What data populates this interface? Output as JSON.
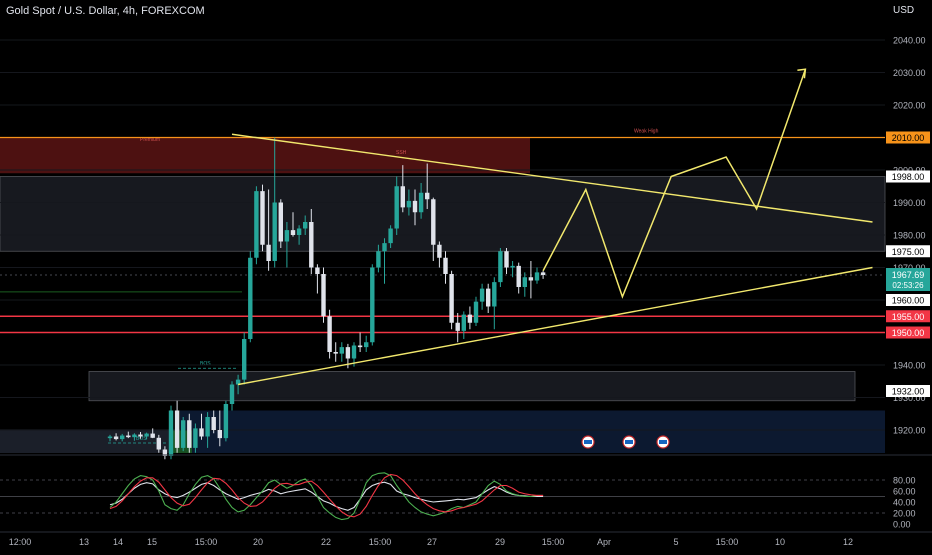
{
  "header": {
    "title": "Gold Spot / U.S. Dollar, 4h, FOREXCOM",
    "currency": "USD"
  },
  "colors": {
    "bull": "#26a69a",
    "bear": "#e0e3eb",
    "projection": "#f2e86d",
    "support_red": "#f23645",
    "premium_zone": "#5a1414",
    "discount_zone": "#0d1a33",
    "rsi_fast": "#e0e3eb",
    "stoch_k": "#4caf50",
    "stoch_d": "#f23645"
  },
  "chart_data": {
    "type": "candlestick",
    "title": "Gold Spot / U.S. Dollar, 4h, FOREXCOM",
    "ylabel": "USD",
    "ylim": [
      1910,
      2045
    ],
    "y_ticks": [
      1920,
      1930,
      1940,
      1950,
      1960,
      1970,
      1980,
      1990,
      2000,
      2010,
      2020,
      2030,
      2040
    ],
    "y_tick_labels": [
      "1920.00",
      "1930.00",
      "1940.00",
      "1950.00",
      "1960.00",
      "1970.00",
      "1980.00",
      "1990.00",
      "2000.00",
      "2010.00",
      "2020.00",
      "2030.00",
      "2040.00"
    ],
    "x_tick_labels": [
      "12:00",
      "13",
      "14",
      "15",
      "15:00",
      "20",
      "22",
      "15:00",
      "27",
      "29",
      "15:00",
      "Apr",
      "5",
      "15:00",
      "10",
      "12"
    ],
    "level_labels": {
      "l2010": "2010.00",
      "l1998": "1998.00",
      "l1975": "1975.00",
      "last": "1967.69",
      "countdown": "02:53:26",
      "l1960": "1960.00",
      "l1955": "1955.00",
      "l1950": "1950.00",
      "l1932": "1932.00"
    },
    "annotations": {
      "premium": "Premium",
      "ssh": "SSH",
      "weak_high": "Weak High",
      "bos1": "BOS",
      "bos2": "BOS"
    },
    "zones": [
      {
        "name": "premium",
        "from": 1999,
        "to": 2010
      },
      {
        "name": "upper-range",
        "from": 1975,
        "to": 1998
      },
      {
        "name": "demand",
        "from": 1929,
        "to": 1938
      },
      {
        "name": "discount",
        "from": 1910,
        "to": 1926
      }
    ],
    "candles": [
      {
        "o": 1917.5,
        "h": 1918.5,
        "l": 1916.5,
        "c": 1918.0
      },
      {
        "o": 1918.0,
        "h": 1919.0,
        "l": 1916.8,
        "c": 1917.2
      },
      {
        "o": 1917.2,
        "h": 1918.8,
        "l": 1916.5,
        "c": 1918.3
      },
      {
        "o": 1918.3,
        "h": 1919.5,
        "l": 1917.5,
        "c": 1917.8
      },
      {
        "o": 1917.8,
        "h": 1919.0,
        "l": 1916.7,
        "c": 1918.6
      },
      {
        "o": 1918.6,
        "h": 1919.4,
        "l": 1917.3,
        "c": 1918.0
      },
      {
        "o": 1918.0,
        "h": 1919.2,
        "l": 1917.1,
        "c": 1918.9
      },
      {
        "o": 1918.9,
        "h": 1920.5,
        "l": 1917.5,
        "c": 1917.6
      },
      {
        "o": 1917.6,
        "h": 1918.5,
        "l": 1913.0,
        "c": 1914.0
      },
      {
        "o": 1914.0,
        "h": 1915.0,
        "l": 1911.0,
        "c": 1912.0
      },
      {
        "o": 1912.0,
        "h": 1927.5,
        "l": 1911.0,
        "c": 1926.0
      },
      {
        "o": 1926.0,
        "h": 1929.0,
        "l": 1913.0,
        "c": 1914.5
      },
      {
        "o": 1914.5,
        "h": 1924.0,
        "l": 1913.5,
        "c": 1923.0
      },
      {
        "o": 1923.0,
        "h": 1925.0,
        "l": 1913.0,
        "c": 1914.5
      },
      {
        "o": 1914.5,
        "h": 1922.0,
        "l": 1913.0,
        "c": 1920.5
      },
      {
        "o": 1920.5,
        "h": 1925.0,
        "l": 1917.0,
        "c": 1918.0
      },
      {
        "o": 1918.0,
        "h": 1925.5,
        "l": 1914.5,
        "c": 1924.0
      },
      {
        "o": 1924.0,
        "h": 1926.0,
        "l": 1919.0,
        "c": 1920.0
      },
      {
        "o": 1920.0,
        "h": 1926.0,
        "l": 1915.0,
        "c": 1917.5
      },
      {
        "o": 1917.5,
        "h": 1929.0,
        "l": 1916.5,
        "c": 1928.0
      },
      {
        "o": 1928.0,
        "h": 1935.0,
        "l": 1926.0,
        "c": 1934.0
      },
      {
        "o": 1934.0,
        "h": 1937.0,
        "l": 1931.0,
        "c": 1935.5
      },
      {
        "o": 1935.5,
        "h": 1950.0,
        "l": 1934.0,
        "c": 1948.0
      },
      {
        "o": 1948.0,
        "h": 1975.0,
        "l": 1947.0,
        "c": 1973.0
      },
      {
        "o": 1973.0,
        "h": 1995.0,
        "l": 1971.0,
        "c": 1993.5
      },
      {
        "o": 1993.5,
        "h": 1995.5,
        "l": 1975.0,
        "c": 1977.0
      },
      {
        "o": 1977.0,
        "h": 1994.0,
        "l": 1969.0,
        "c": 1972.0
      },
      {
        "o": 1972.0,
        "h": 2010.0,
        "l": 1970.0,
        "c": 1990.0
      },
      {
        "o": 1990.0,
        "h": 1991.0,
        "l": 1976.0,
        "c": 1978.0
      },
      {
        "o": 1978.0,
        "h": 1984.0,
        "l": 1970.0,
        "c": 1981.5
      },
      {
        "o": 1981.5,
        "h": 1987.0,
        "l": 1979.5,
        "c": 1980.0
      },
      {
        "o": 1980.0,
        "h": 1983.0,
        "l": 1977.0,
        "c": 1982.0
      },
      {
        "o": 1982.0,
        "h": 1986.0,
        "l": 1980.0,
        "c": 1984.0
      },
      {
        "o": 1984.0,
        "h": 1988.0,
        "l": 1968.0,
        "c": 1970.0
      },
      {
        "o": 1970.0,
        "h": 1971.0,
        "l": 1962.0,
        "c": 1968.0
      },
      {
        "o": 1968.0,
        "h": 1970.0,
        "l": 1953.0,
        "c": 1955.0
      },
      {
        "o": 1955.0,
        "h": 1957.0,
        "l": 1942.0,
        "c": 1944.0
      },
      {
        "o": 1944.0,
        "h": 1947.0,
        "l": 1941.0,
        "c": 1943.5
      },
      {
        "o": 1943.5,
        "h": 1947.0,
        "l": 1941.0,
        "c": 1945.5
      },
      {
        "o": 1945.5,
        "h": 1946.5,
        "l": 1939.0,
        "c": 1942.0
      },
      {
        "o": 1942.0,
        "h": 1947.0,
        "l": 1939.5,
        "c": 1946.0
      },
      {
        "o": 1946.0,
        "h": 1950.0,
        "l": 1944.0,
        "c": 1945.5
      },
      {
        "o": 1945.5,
        "h": 1949.0,
        "l": 1944.0,
        "c": 1947.0
      },
      {
        "o": 1947.0,
        "h": 1971.0,
        "l": 1946.0,
        "c": 1970.0
      },
      {
        "o": 1970.0,
        "h": 1977.0,
        "l": 1968.5,
        "c": 1975.0
      },
      {
        "o": 1975.0,
        "h": 1979.0,
        "l": 1965.0,
        "c": 1977.5
      },
      {
        "o": 1977.5,
        "h": 1983.0,
        "l": 1976.0,
        "c": 1982.0
      },
      {
        "o": 1982.0,
        "h": 1998.0,
        "l": 1980.0,
        "c": 1995.0
      },
      {
        "o": 1995.0,
        "h": 2001.5,
        "l": 1987.0,
        "c": 1988.5
      },
      {
        "o": 1988.5,
        "h": 1994.0,
        "l": 1986.0,
        "c": 1990.5
      },
      {
        "o": 1990.5,
        "h": 1994.0,
        "l": 1983.0,
        "c": 1987.0
      },
      {
        "o": 1987.0,
        "h": 1996.0,
        "l": 1985.0,
        "c": 1993.0
      },
      {
        "o": 1993.0,
        "h": 2002.0,
        "l": 1988.0,
        "c": 1991.0
      },
      {
        "o": 1991.0,
        "h": 1991.5,
        "l": 1972.0,
        "c": 1977.0
      },
      {
        "o": 1977.0,
        "h": 1978.0,
        "l": 1970.0,
        "c": 1973.0
      },
      {
        "o": 1973.0,
        "h": 1975.0,
        "l": 1965.0,
        "c": 1968.0
      },
      {
        "o": 1968.0,
        "h": 1969.0,
        "l": 1951.0,
        "c": 1953.0
      },
      {
        "o": 1953.0,
        "h": 1956.0,
        "l": 1947.0,
        "c": 1950.5
      },
      {
        "o": 1950.5,
        "h": 1956.5,
        "l": 1948.0,
        "c": 1955.5
      },
      {
        "o": 1955.5,
        "h": 1958.0,
        "l": 1951.0,
        "c": 1953.0
      },
      {
        "o": 1953.0,
        "h": 1961.0,
        "l": 1952.0,
        "c": 1959.5
      },
      {
        "o": 1959.5,
        "h": 1965.0,
        "l": 1957.0,
        "c": 1963.5
      },
      {
        "o": 1963.5,
        "h": 1965.0,
        "l": 1956.0,
        "c": 1958.0
      },
      {
        "o": 1958.0,
        "h": 1967.0,
        "l": 1951.0,
        "c": 1965.5
      },
      {
        "o": 1965.5,
        "h": 1976.0,
        "l": 1964.0,
        "c": 1975.0
      },
      {
        "o": 1975.0,
        "h": 1976.0,
        "l": 1968.0,
        "c": 1970.0
      },
      {
        "o": 1970.0,
        "h": 1972.0,
        "l": 1967.0,
        "c": 1970.5
      },
      {
        "o": 1970.5,
        "h": 1971.5,
        "l": 1962.0,
        "c": 1964.0
      },
      {
        "o": 1964.0,
        "h": 1968.5,
        "l": 1961.0,
        "c": 1967.0
      },
      {
        "o": 1967.0,
        "h": 1972.0,
        "l": 1960.5,
        "c": 1966.0
      },
      {
        "o": 1966.0,
        "h": 1970.0,
        "l": 1965.0,
        "c": 1968.5
      },
      {
        "o": 1968.5,
        "h": 1969.0,
        "l": 1966.5,
        "c": 1967.7
      }
    ],
    "projection": {
      "x_index": [
        71,
        78,
        84,
        92,
        101,
        106,
        114
      ],
      "y": [
        1969,
        1994,
        1961,
        1998,
        2004,
        1988,
        2031
      ]
    },
    "trendlines": [
      {
        "name": "upper",
        "from": {
          "i": 20,
          "y": 2011
        },
        "to": {
          "i": 125,
          "y": 1984
        }
      },
      {
        "name": "lower",
        "from": {
          "i": 21,
          "y": 1934
        },
        "to": {
          "i": 125,
          "y": 1970
        }
      }
    ],
    "oscillator": {
      "ylim": [
        0,
        100
      ],
      "ticks": [
        0,
        20,
        40,
        60,
        80
      ],
      "tick_labels": [
        "0.00",
        "20.00",
        "40.00",
        "60.00",
        "80.00"
      ],
      "levels": [
        20,
        50,
        80
      ],
      "series": [
        {
          "values": [
            35,
            38,
            45,
            55,
            65,
            72,
            75,
            73,
            62,
            55,
            50,
            48,
            52,
            58,
            65,
            72,
            75,
            70,
            62,
            55,
            50,
            45,
            48,
            52,
            55,
            58,
            63,
            60,
            55,
            58,
            60,
            62,
            64,
            58,
            50,
            42,
            38,
            32,
            28,
            25,
            30,
            45,
            62,
            70,
            74,
            76,
            72,
            60,
            55,
            52,
            48,
            45,
            42,
            40,
            41,
            42,
            43,
            45,
            44,
            46,
            48,
            55,
            62,
            68,
            64,
            58,
            54,
            52,
            51,
            50,
            50,
            50
          ]
        },
        {
          "values": [
            30,
            40,
            55,
            70,
            82,
            88,
            86,
            80,
            60,
            35,
            28,
            25,
            35,
            55,
            72,
            85,
            88,
            82,
            65,
            45,
            30,
            22,
            25,
            35,
            48,
            60,
            75,
            80,
            72,
            65,
            70,
            78,
            82,
            70,
            50,
            30,
            20,
            12,
            8,
            10,
            20,
            45,
            75,
            88,
            92,
            93,
            88,
            70,
            55,
            40,
            30,
            22,
            18,
            15,
            18,
            22,
            28,
            32,
            30,
            35,
            40,
            55,
            70,
            78,
            72,
            60,
            55,
            52,
            50,
            50,
            52,
            52
          ]
        },
        {
          "values": [
            28,
            32,
            42,
            55,
            68,
            78,
            84,
            84,
            76,
            62,
            48,
            38,
            33,
            36,
            48,
            62,
            75,
            83,
            82,
            74,
            62,
            48,
            38,
            32,
            33,
            40,
            52,
            65,
            73,
            74,
            71,
            72,
            76,
            78,
            70,
            58,
            45,
            33,
            22,
            15,
            13,
            18,
            32,
            52,
            70,
            84,
            90,
            88,
            80,
            68,
            55,
            44,
            35,
            28,
            24,
            22,
            24,
            28,
            30,
            33,
            36,
            42,
            52,
            62,
            70,
            70,
            65,
            58,
            55,
            53,
            52,
            52
          ]
        }
      ]
    }
  }
}
